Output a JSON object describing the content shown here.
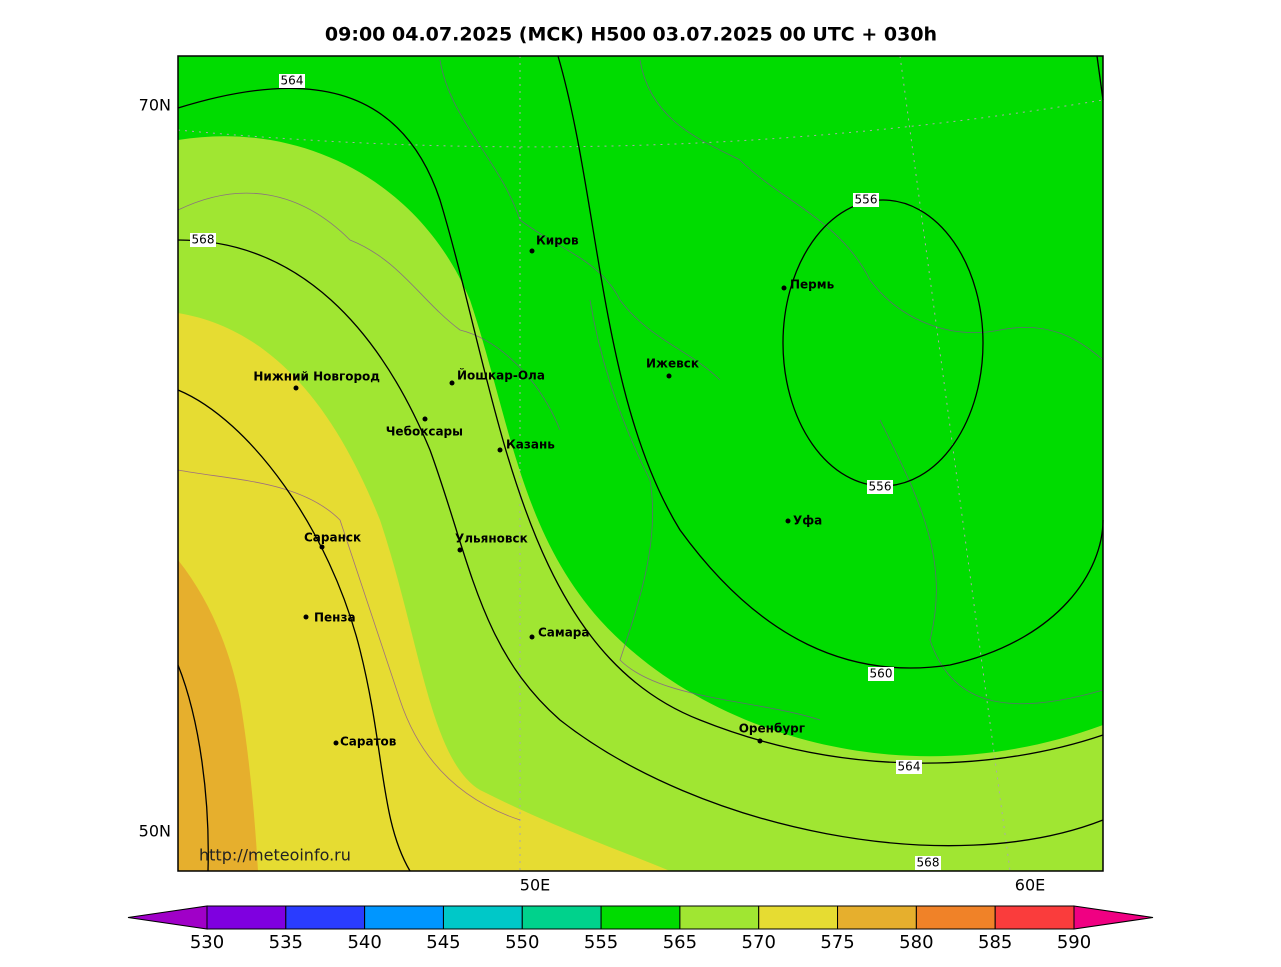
{
  "header": {
    "title": "09:00 04.07.2025 (MCK) H500  03.07.2025 00 UTC + 030h"
  },
  "map": {
    "lat_labels": [
      "70N",
      "50N"
    ],
    "lon_labels": [
      "50E",
      "60E"
    ],
    "cities": [
      "Киров",
      "Пермь",
      "Ижевск",
      "Йошкар-Ола",
      "Нижний Новгород",
      "Чебоксары",
      "Казань",
      "Саранск",
      "Ульяновск",
      "Пенза",
      "Самара",
      "Уфа",
      "Оренбург",
      "Саратов"
    ],
    "contour_labels": [
      "564",
      "568",
      "556",
      "556",
      "560",
      "564",
      "568"
    ],
    "url": "http://meteoinfo.ru"
  },
  "colorbar": {
    "labels": [
      "530",
      "535",
      "540",
      "545",
      "550",
      "555",
      "565",
      "570",
      "575",
      "580",
      "585",
      "590"
    ],
    "colors": [
      "#a000c8",
      "#7f00e0",
      "#2a3cff",
      "#0096ff",
      "#00c8c8",
      "#00d28c",
      "#00dc00",
      "#a0e632",
      "#e6dc32",
      "#e6af2d",
      "#f08228",
      "#fa3c3c",
      "#f00082"
    ]
  }
}
